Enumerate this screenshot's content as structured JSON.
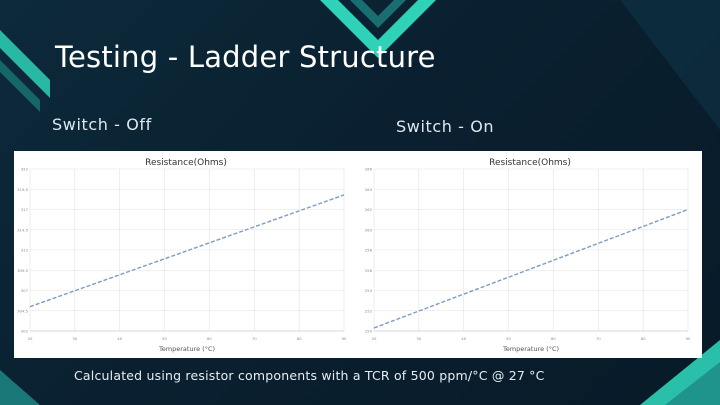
{
  "slide": {
    "title": "Testing - Ladder Structure",
    "footer": "Calculated using resistor components with a TCR of 500 ppm/°C @ 27 °C",
    "colors": {
      "accent": "#2fd1b7",
      "background": "#0a2030"
    }
  },
  "chart_data": [
    {
      "type": "line",
      "label": "Switch - Off",
      "title": "Resistance(Ohms)",
      "xlabel": "Temperature (°C)",
      "ylabel": "",
      "x": [
        20,
        90
      ],
      "series": [
        {
          "values": [
            305,
            318.8
          ],
          "color": "#7a9cc6"
        }
      ],
      "xlim": [
        20,
        90
      ],
      "ylim": [
        302,
        322
      ],
      "grid": true
    },
    {
      "type": "line",
      "label": "Switch - On",
      "title": "Resistance(Ohms)",
      "xlabel": "Temperature (°C)",
      "ylabel": "",
      "x": [
        20,
        90
      ],
      "series": [
        {
          "values": [
            250.3,
            262
          ],
          "color": "#7a9cc6"
        }
      ],
      "xlim": [
        20,
        90
      ],
      "ylim": [
        250,
        266
      ],
      "grid": true
    }
  ]
}
